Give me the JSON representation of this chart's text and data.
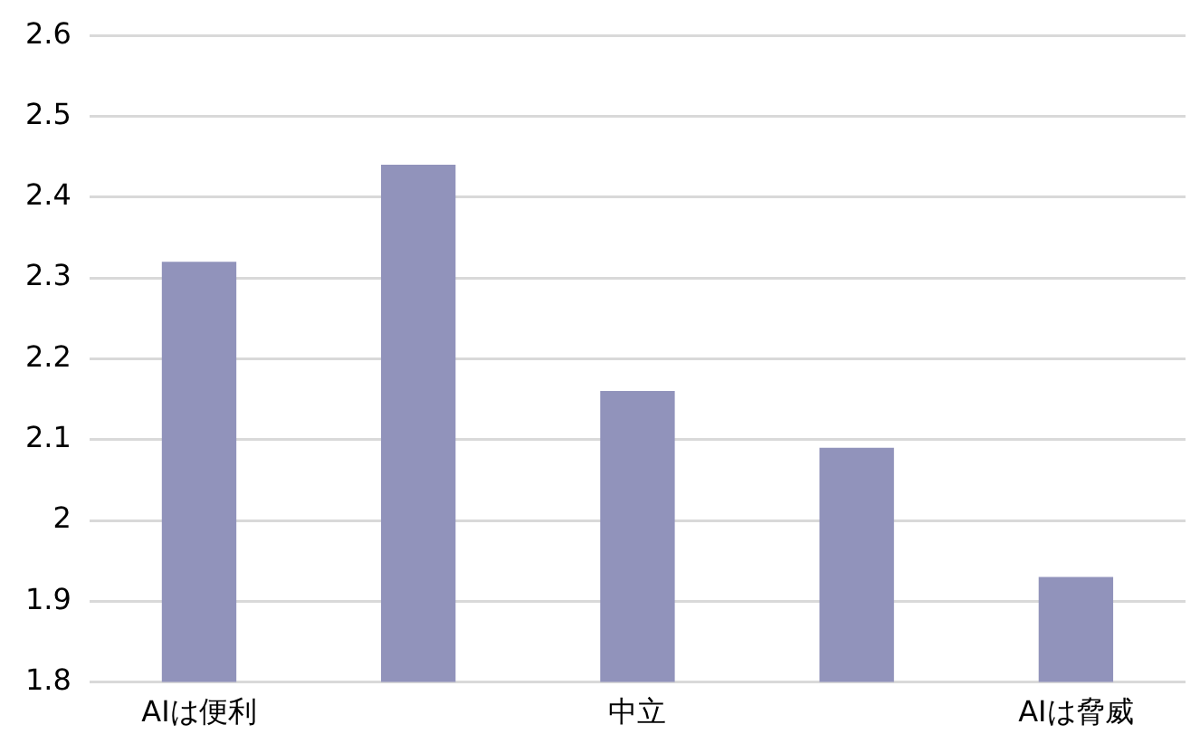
{
  "chart_data": {
    "type": "bar",
    "categories": [
      "AIは便利",
      null,
      "中立",
      null,
      "AIは脅威"
    ],
    "values": [
      2.32,
      2.44,
      2.16,
      2.09,
      1.93
    ],
    "color": "#9193bb",
    "ylim": [
      1.8,
      2.6
    ],
    "yticks": [
      1.8,
      1.9,
      2,
      2.1,
      2.2,
      2.3,
      2.4,
      2.5,
      2.6
    ],
    "grid": "y"
  }
}
